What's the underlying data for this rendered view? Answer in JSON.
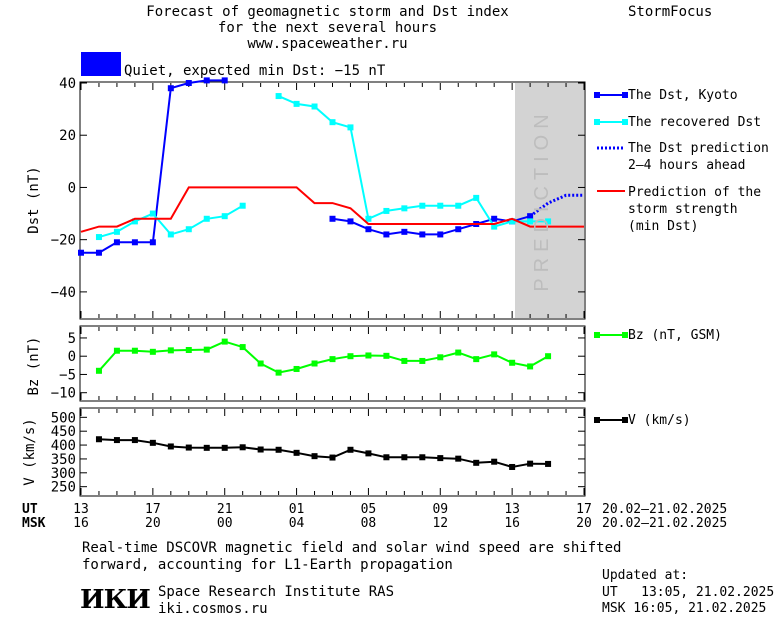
{
  "header": {
    "title_line1": "Forecast of geomagnetic storm and Dst index",
    "title_line2": "for the next several hours",
    "url": "www.spaceweather.ru",
    "brand": "StormFocus",
    "status": "Quiet, expected min Dst: −15 nT",
    "status_color": "#0000ff"
  },
  "chart_data": [
    {
      "type": "line",
      "panel": "dst",
      "ylabel": "Dst (nT)",
      "ylim": [
        -50,
        40
      ],
      "xlim": [
        13,
        41
      ],
      "yticks": [
        40,
        20,
        0,
        -20,
        -40
      ],
      "prediction_region": [
        37,
        41
      ],
      "prediction_label": "PREDICTION",
      "series": [
        {
          "name": "The Dst, Kyoto",
          "color": "#0000ff",
          "marker": "square",
          "style": "solid",
          "segments": [
            [
              [
                13,
                -25
              ],
              [
                14,
                -25
              ],
              [
                15,
                -21
              ],
              [
                16,
                -21
              ],
              [
                17,
                -21
              ],
              [
                18,
                38
              ],
              [
                19,
                40
              ],
              [
                20,
                41
              ],
              [
                21,
                41
              ]
            ],
            [
              [
                27,
                -12
              ],
              [
                28,
                -13
              ],
              [
                29,
                -16
              ],
              [
                30,
                -18
              ],
              [
                31,
                -17
              ],
              [
                32,
                -18
              ],
              [
                33,
                -18
              ],
              [
                34,
                -16
              ],
              [
                35,
                -14
              ],
              [
                36,
                -12
              ],
              [
                37,
                -13
              ],
              [
                38,
                -11
              ]
            ]
          ]
        },
        {
          "name": "The recovered Dst",
          "color": "#00ffff",
          "marker": "square",
          "style": "solid",
          "segments": [
            [
              [
                14,
                -19
              ],
              [
                15,
                -17
              ],
              [
                16,
                -13
              ],
              [
                17,
                -10
              ],
              [
                18,
                -18
              ],
              [
                19,
                -16
              ],
              [
                20,
                -12
              ],
              [
                21,
                -11
              ],
              [
                22,
                -7
              ]
            ],
            [
              [
                24,
                35
              ],
              [
                25,
                32
              ],
              [
                26,
                31
              ],
              [
                27,
                25
              ],
              [
                28,
                23
              ],
              [
                29,
                -12
              ],
              [
                30,
                -9
              ],
              [
                31,
                -8
              ],
              [
                32,
                -7
              ],
              [
                33,
                -7
              ],
              [
                34,
                -7
              ],
              [
                35,
                -4
              ],
              [
                36,
                -15
              ],
              [
                37,
                -13
              ],
              [
                38,
                -13
              ],
              [
                39,
                -13
              ]
            ]
          ]
        },
        {
          "name": "The Dst prediction 2–4 hours ahead",
          "color": "#0000ff",
          "marker": "none",
          "style": "dotted",
          "segments": [
            [
              [
                38,
                -11
              ],
              [
                39,
                -6
              ],
              [
                40,
                -3
              ],
              [
                41,
                -3
              ]
            ]
          ]
        },
        {
          "name": "Prediction of the storm strength (min Dst)",
          "color": "#ff0000",
          "marker": "none",
          "style": "solid",
          "segments": [
            [
              [
                13,
                -17
              ],
              [
                14,
                -15
              ],
              [
                15,
                -15
              ],
              [
                16,
                -12
              ],
              [
                17,
                -12
              ],
              [
                18,
                -12
              ],
              [
                19,
                0
              ],
              [
                24,
                0
              ],
              [
                25,
                0
              ],
              [
                26,
                -6
              ],
              [
                27,
                -6
              ],
              [
                28,
                -8
              ],
              [
                29,
                -14
              ],
              [
                30,
                -14
              ],
              [
                36,
                -14
              ],
              [
                37,
                -12
              ],
              [
                38,
                -15
              ],
              [
                41,
                -15
              ]
            ]
          ]
        }
      ]
    },
    {
      "type": "line",
      "panel": "bz",
      "ylabel": "Bz (nT)",
      "ylim": [
        -12,
        8
      ],
      "xlim": [
        13,
        41
      ],
      "yticks": [
        5,
        0,
        -5,
        -10
      ],
      "series": [
        {
          "name": "Bz (nT, GSM)",
          "color": "#00ff00",
          "marker": "square",
          "style": "solid",
          "segments": [
            [
              [
                14,
                -4
              ],
              [
                15,
                1.5
              ],
              [
                16,
                1.5
              ],
              [
                17,
                1.2
              ],
              [
                18,
                1.6
              ],
              [
                19,
                1.7
              ],
              [
                20,
                1.8
              ],
              [
                21,
                4
              ],
              [
                22,
                2.5
              ],
              [
                23,
                -2
              ],
              [
                24,
                -4.5
              ],
              [
                25,
                -3.5
              ],
              [
                26,
                -2
              ],
              [
                27,
                -0.8
              ],
              [
                28,
                0
              ],
              [
                29,
                0.2
              ],
              [
                30,
                0.1
              ],
              [
                31,
                -1.3
              ],
              [
                32,
                -1.3
              ],
              [
                33,
                -0.3
              ],
              [
                34,
                1
              ],
              [
                35,
                -0.8
              ],
              [
                36,
                0.5
              ],
              [
                37,
                -1.8
              ],
              [
                38,
                -2.8
              ],
              [
                39,
                0
              ]
            ]
          ]
        }
      ]
    },
    {
      "type": "line",
      "panel": "v",
      "ylabel": "V (km/s)",
      "ylim": [
        220,
        530
      ],
      "xlim": [
        13,
        41
      ],
      "yticks": [
        500,
        450,
        400,
        350,
        300,
        250
      ],
      "series": [
        {
          "name": "V (km/s)",
          "color": "#000000",
          "marker": "square",
          "style": "solid",
          "segments": [
            [
              [
                14,
                421
              ],
              [
                15,
                418
              ],
              [
                16,
                418
              ],
              [
                17,
                408
              ],
              [
                18,
                395
              ],
              [
                19,
                391
              ],
              [
                20,
                390
              ],
              [
                21,
                390
              ],
              [
                22,
                392
              ],
              [
                23,
                384
              ],
              [
                24,
                383
              ],
              [
                25,
                372
              ],
              [
                26,
                360
              ],
              [
                27,
                355
              ],
              [
                28,
                383
              ],
              [
                29,
                370
              ],
              [
                30,
                356
              ],
              [
                31,
                356
              ],
              [
                32,
                356
              ],
              [
                33,
                353
              ],
              [
                34,
                351
              ],
              [
                35,
                336
              ],
              [
                36,
                340
              ],
              [
                37,
                321
              ],
              [
                38,
                333
              ],
              [
                39,
                332
              ]
            ]
          ]
        }
      ]
    }
  ],
  "axis": {
    "ut_label": "UT",
    "msk_label": "MSK",
    "ut_ticks": [
      "13",
      "17",
      "21",
      "01",
      "05",
      "09",
      "13",
      "17"
    ],
    "msk_ticks": [
      "16",
      "20",
      "00",
      "04",
      "08",
      "12",
      "16",
      "20"
    ],
    "date_range_ut": "20.02–21.02.2025",
    "date_range_msk": "20.02–21.02.2025"
  },
  "legend": {
    "dst_kyoto": "The Dst, Kyoto",
    "recovered": "The recovered Dst",
    "prediction_l1": "The Dst prediction",
    "prediction_l2": "2–4 hours ahead",
    "storm_l1": "Prediction of the",
    "storm_l2": "storm strength",
    "storm_l3": "(min Dst)",
    "bz": "Bz (nT, GSM)",
    "v": "V (km/s)"
  },
  "footer": {
    "note_l1": "Real-time DSCOVR magnetic field and solar wind speed are shifted",
    "note_l2": "forward, accounting for L1-Earth propagation",
    "logo_text": "ИКИ",
    "institute": "Space Research Institute RAS",
    "site": "iki.cosmos.ru",
    "updated_label": "Updated at:",
    "updated_ut": "UT   13:05, 21.02.2025",
    "updated_msk": "MSK 16:05, 21.02.2025"
  },
  "colors": {
    "dst_kyoto": "#0000ff",
    "recovered": "#00ffff",
    "storm_strength": "#ff0000",
    "bz": "#00ff00",
    "velocity": "#000000",
    "prediction_shade": "#d3d3d3"
  }
}
